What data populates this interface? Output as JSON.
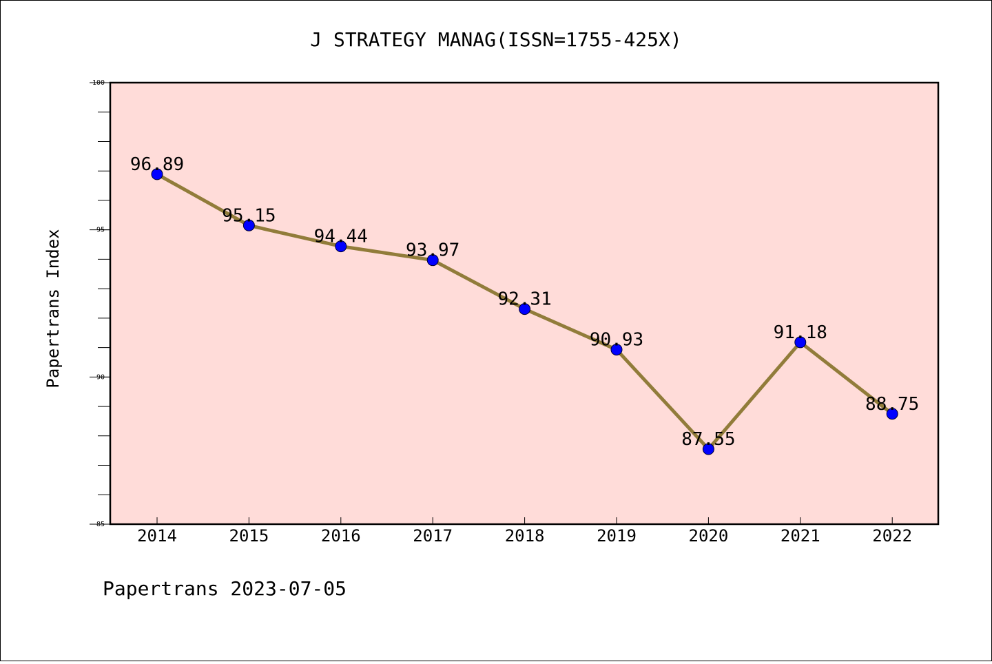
{
  "chart_data": {
    "type": "line",
    "title": "J STRATEGY MANAG(ISSN=1755-425X)",
    "ylabel": "Papertrans Index",
    "xlabel": "",
    "categories": [
      "2014",
      "2015",
      "2016",
      "2017",
      "2018",
      "2019",
      "2020",
      "2021",
      "2022"
    ],
    "series": [
      {
        "values": [
          96.89,
          95.15,
          94.44,
          93.97,
          92.31,
          90.93,
          87.55,
          91.18,
          88.75
        ],
        "labels": [
          "96.89",
          "95.15",
          "94.44",
          "93.97",
          "92.31",
          "90.93",
          "87.55",
          "91.18",
          "88.75"
        ],
        "line_color": "#917c3a",
        "marker_color": "#0000ff"
      }
    ],
    "ylim": [
      85,
      100
    ],
    "yticks_major": [
      85,
      90,
      95,
      100
    ],
    "yticks_major_labels": [
      "85",
      "90",
      "95",
      "100"
    ],
    "yticks_minor_step": 1,
    "plot_background": "#ffdcd9",
    "grid": false,
    "legend": "none"
  },
  "footer": {
    "text": "Papertrans 2023-07-05"
  }
}
